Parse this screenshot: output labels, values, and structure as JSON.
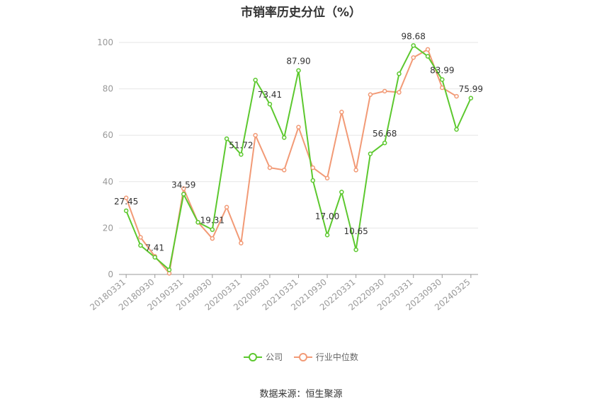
{
  "chart_data": {
    "type": "line",
    "title": "市销率历史分位（%）",
    "xlabel": "",
    "ylabel": "",
    "ylim": [
      0,
      100
    ],
    "yticks": [
      0,
      20,
      40,
      60,
      80,
      100
    ],
    "x_tick_labels": [
      "20180331",
      "20180930",
      "20190331",
      "20190930",
      "20200331",
      "20200930",
      "20210331",
      "20210930",
      "20220331",
      "20220930",
      "20230331",
      "20230930",
      "20240325"
    ],
    "grid": true,
    "legend_position": "bottom",
    "series": [
      {
        "name": "公司",
        "color": "#5cc82e",
        "values": [
          27.45,
          12.5,
          7.41,
          2.0,
          34.59,
          22.5,
          19.31,
          58.5,
          51.72,
          83.8,
          73.41,
          59.0,
          87.9,
          40.5,
          17.0,
          35.5,
          10.65,
          52.0,
          56.68,
          86.5,
          98.68,
          94.0,
          83.99,
          62.5,
          75.99
        ]
      },
      {
        "name": "行业中位数",
        "color": "#f29a76",
        "values": [
          33.0,
          16.0,
          7.8,
          0.5,
          37.0,
          22.5,
          15.5,
          29.0,
          13.5,
          60.0,
          46.0,
          45.0,
          63.5,
          46.0,
          41.5,
          70.0,
          45.0,
          77.5,
          79.0,
          78.5,
          93.5,
          97.0,
          80.5,
          76.8,
          null
        ]
      }
    ],
    "data_labels": [
      {
        "index": 0,
        "text": "27.45"
      },
      {
        "index": 2,
        "text": "7.41"
      },
      {
        "index": 4,
        "text": "34.59"
      },
      {
        "index": 6,
        "text": "19.31"
      },
      {
        "index": 8,
        "text": "51.72"
      },
      {
        "index": 10,
        "text": "73.41"
      },
      {
        "index": 12,
        "text": "87.90"
      },
      {
        "index": 14,
        "text": "17.00"
      },
      {
        "index": 16,
        "text": "10.65"
      },
      {
        "index": 18,
        "text": "56.68"
      },
      {
        "index": 20,
        "text": "98.68"
      },
      {
        "index": 22,
        "text": "83.99"
      },
      {
        "index": 24,
        "text": "75.99"
      }
    ]
  },
  "legend": {
    "company_label": "公司",
    "industry_label": "行业中位数"
  },
  "source": "数据来源：恒生聚源"
}
